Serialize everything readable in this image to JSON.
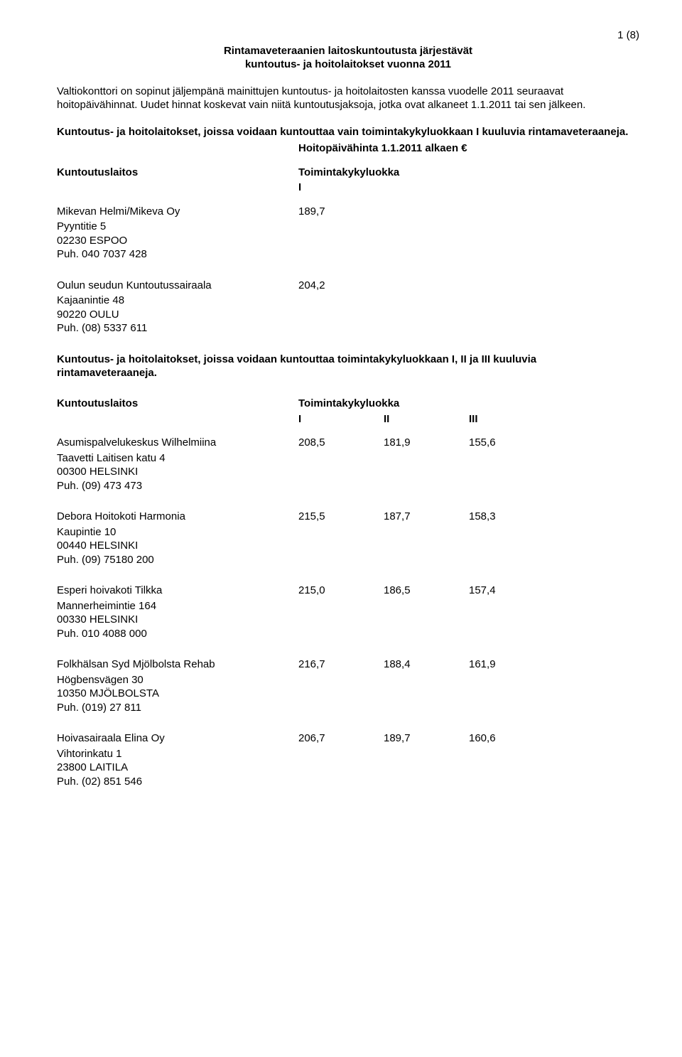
{
  "page_number": "1 (8)",
  "title_line1": "Rintamaveteraanien laitoskuntoutusta järjestävät",
  "title_line2": "kuntoutus- ja hoitolaitokset vuonna 2011",
  "intro": "Valtiokonttori on sopinut jäljempänä mainittujen kuntoutus- ja hoitolaitosten kanssa vuodelle 2011 seuraavat hoitopäivähinnat. Uudet hinnat koskevat vain niitä kuntoutusjaksoja, jotka ovat alkaneet 1.1.2011 tai sen jälkeen.",
  "section1_head": "Kuntoutus- ja hoitolaitokset, joissa voidaan kuntouttaa vain toimintakykyluokkaan I kuuluvia rintamaveteraaneja.",
  "price_label": "Hoitopäivähinta 1.1.2011 alkaen €",
  "col_left_label": "Kuntoutuslaitos",
  "col_right_label": "Toimintakykyluokka",
  "class_I": "I",
  "class_II": "II",
  "class_III": "III",
  "section1_items": [
    {
      "name": "Mikevan Helmi/Mikeva Oy",
      "lines": [
        "Pyyntitie 5",
        "02230 ESPOO",
        "Puh. 040 7037 428"
      ],
      "v1": "189,7"
    },
    {
      "name": "Oulun seudun Kuntoutussairaala",
      "lines": [
        "Kajaanintie 48",
        "90220 OULU",
        "Puh. (08) 5337 611"
      ],
      "v1": "204,2"
    }
  ],
  "section2_head": "Kuntoutus- ja hoitolaitokset, joissa voidaan kuntouttaa toimintakykyluokkaan I, II ja III kuuluvia rintamaveteraaneja.",
  "section2_items": [
    {
      "name": "Asumispalvelukeskus Wilhelmiina",
      "lines": [
        "Taavetti Laitisen katu 4",
        "00300 HELSINKI",
        "Puh. (09) 473 473"
      ],
      "v1": "208,5",
      "v2": "181,9",
      "v3": "155,6"
    },
    {
      "name": "Debora Hoitokoti Harmonia",
      "lines": [
        "Kaupintie 10",
        "00440 HELSINKI",
        "Puh. (09) 75180 200"
      ],
      "v1": "215,5",
      "v2": "187,7",
      "v3": "158,3"
    },
    {
      "name": "Esperi hoivakoti Tilkka",
      "lines": [
        "Mannerheimintie 164",
        "00330 HELSINKI",
        "Puh. 010 4088 000"
      ],
      "v1": "215,0",
      "v2": "186,5",
      "v3": "157,4"
    },
    {
      "name": "Folkhälsan Syd Mjölbolsta Rehab",
      "lines": [
        "Högbensvägen 30",
        "10350 MJÖLBOLSTA",
        "Puh. (019) 27 811"
      ],
      "v1": "216,7",
      "v2": "188,4",
      "v3": "161,9"
    },
    {
      "name": "Hoivasairaala Elina Oy",
      "lines": [
        "Vihtorinkatu 1",
        "23800 LAITILA",
        "Puh. (02) 851 546"
      ],
      "v1": "206,7",
      "v2": "189,7",
      "v3": "160,6"
    }
  ]
}
